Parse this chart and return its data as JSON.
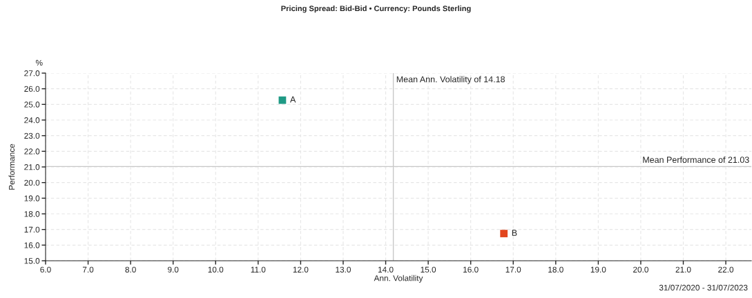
{
  "chart_data": {
    "type": "scatter",
    "title": "Pricing Spread: Bid-Bid • Currency: Pounds Sterling",
    "xlabel": "Ann. Volatility",
    "ylabel": "Performance",
    "annotations": [
      "%",
      "31/07/2020 - 31/07/2023"
    ],
    "series": [
      {
        "name": "A",
        "color": "#1f9a85",
        "x": [
          11.57
        ],
        "values": [
          25.27
        ]
      },
      {
        "name": "B",
        "color": "#e2461e",
        "x": [
          16.78
        ],
        "values": [
          16.74
        ]
      }
    ],
    "marker": "square",
    "grid": true,
    "legend": false,
    "xlim": [
      6,
      22.6
    ],
    "xticks": [
      {
        "value": 6,
        "label": "6.0"
      },
      {
        "value": 7,
        "label": "7.0"
      },
      {
        "value": 8,
        "label": "8.0"
      },
      {
        "value": 9,
        "label": "9.0"
      },
      {
        "value": 10,
        "label": "10.0"
      },
      {
        "value": 11,
        "label": "11.0"
      },
      {
        "value": 12,
        "label": "12.0"
      },
      {
        "value": 13,
        "label": "13.0"
      },
      {
        "value": 14,
        "label": "14.0"
      },
      {
        "value": 15,
        "label": "15.0"
      },
      {
        "value": 16,
        "label": "16.0"
      },
      {
        "value": 17,
        "label": "17.0"
      },
      {
        "value": 18,
        "label": "18.0"
      },
      {
        "value": 19,
        "label": "19.0"
      },
      {
        "value": 20,
        "label": "20.0"
      },
      {
        "value": 21,
        "label": "21.0"
      },
      {
        "value": 22,
        "label": "22.0"
      }
    ],
    "ylim": [
      15,
      27
    ],
    "yticks": [
      {
        "value": 15,
        "label": "15.0"
      },
      {
        "value": 16,
        "label": "16.0"
      },
      {
        "value": 17,
        "label": "17.0"
      },
      {
        "value": 18,
        "label": "18.0"
      },
      {
        "value": 19,
        "label": "19.0"
      },
      {
        "value": 20,
        "label": "20.0"
      },
      {
        "value": 21,
        "label": "21.0"
      },
      {
        "value": 22,
        "label": "22.0"
      },
      {
        "value": 23,
        "label": "23.0"
      },
      {
        "value": 24,
        "label": "24.0"
      },
      {
        "value": 25,
        "label": "25.0"
      },
      {
        "value": 26,
        "label": "26.0"
      },
      {
        "value": 27,
        "label": "27.0"
      }
    ],
    "ref_lines": [
      {
        "axis": "x",
        "value": 14.18,
        "label": "Mean Ann. Volatility of 14.18",
        "color": "#c8c8c8"
      },
      {
        "axis": "y",
        "value": 21.03,
        "label": "Mean Performance of 21.03",
        "color": "#c8c8c8"
      }
    ]
  }
}
